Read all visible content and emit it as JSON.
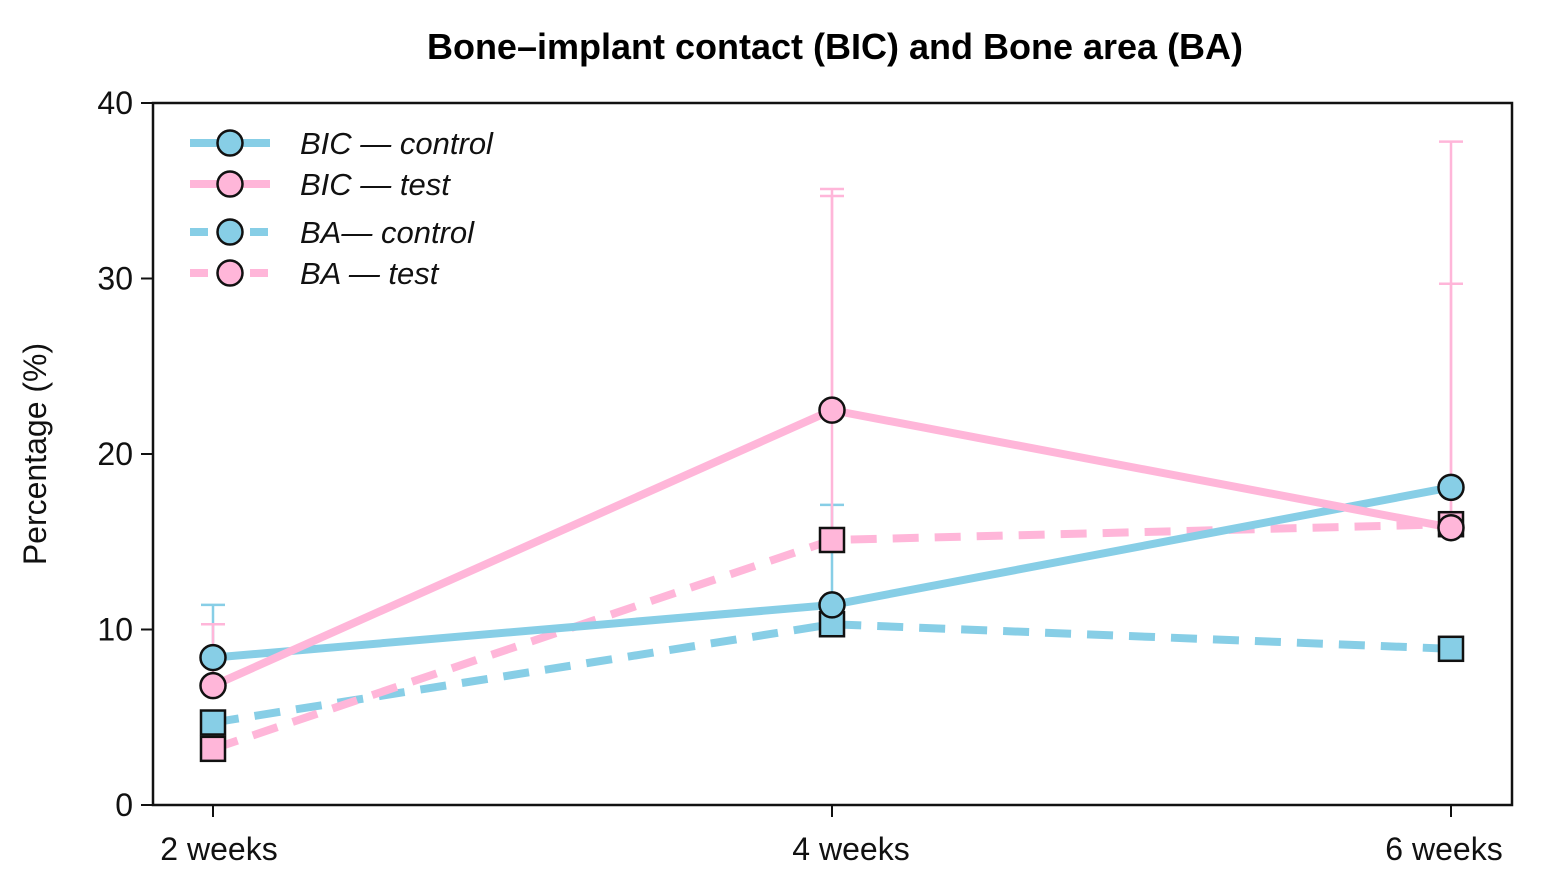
{
  "chart_data": {
    "type": "line",
    "title": "Bone–implant contact (BIC) and Bone area (BA)",
    "xlabel": "",
    "ylabel": "Percentage (%)",
    "categories": [
      "2 weeks",
      "4 weeks",
      "6 weeks"
    ],
    "ylim": [
      0,
      40
    ],
    "yticks": [
      0,
      10,
      20,
      30,
      40
    ],
    "grid": false,
    "legend_position": "top-left",
    "series": [
      {
        "name": "BIC — control",
        "color": "#87CEE6",
        "line_style": "solid",
        "marker": "circle",
        "values": [
          8.4,
          11.4,
          18.1
        ],
        "error_upper": [
          11.4,
          17.1,
          null
        ]
      },
      {
        "name": "BIC — test",
        "color": "#FFB6D9",
        "line_style": "solid",
        "marker": "circle",
        "values": [
          6.8,
          22.5,
          15.8
        ],
        "error_upper": [
          10.3,
          35.1,
          37.8
        ]
      },
      {
        "name": "BA— control",
        "color": "#87CEE6",
        "line_style": "dashed",
        "marker": "square",
        "values": [
          4.7,
          10.3,
          8.9
        ],
        "error_upper": [
          null,
          null,
          null
        ]
      },
      {
        "name": "BA — test",
        "color": "#FFB6D9",
        "line_style": "dashed",
        "marker": "square",
        "values": [
          3.2,
          15.1,
          16.0
        ],
        "error_upper": [
          null,
          34.7,
          29.7
        ]
      }
    ]
  }
}
